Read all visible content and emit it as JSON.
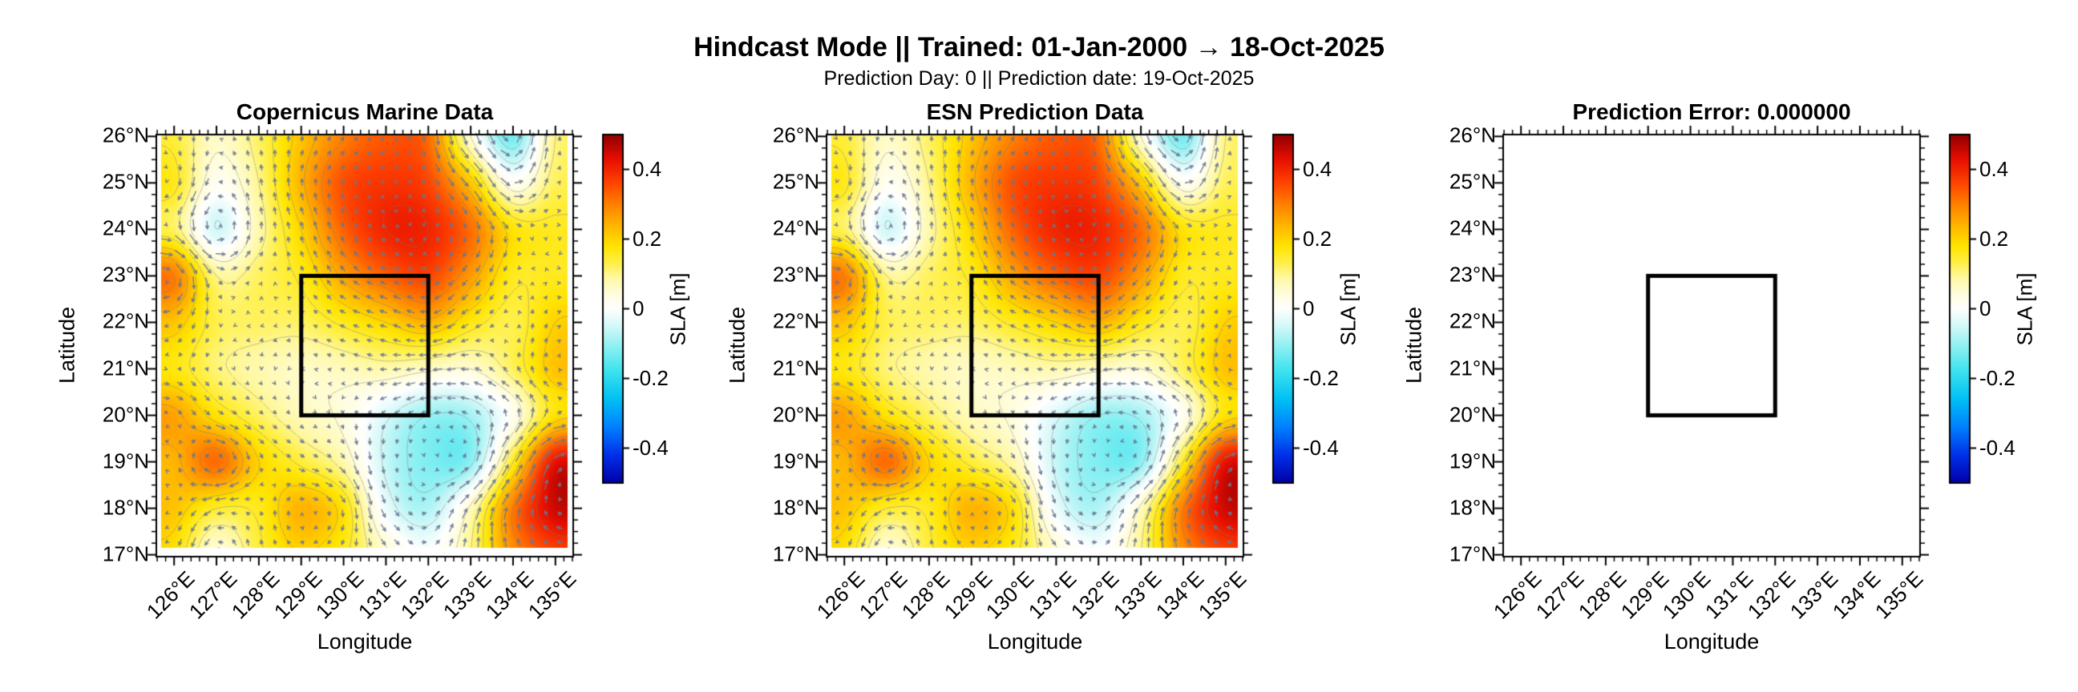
{
  "header": {
    "title": "Hindcast Mode || Trained: 01-Jan-2000 → 18-Oct-2025",
    "subtitle": "Prediction Day: 0 || Prediction date: 19-Oct-2025"
  },
  "panels": [
    {
      "title": "Copernicus Marine Data",
      "has_field": true
    },
    {
      "title": "ESN Prediction Data",
      "has_field": true
    },
    {
      "title": "Prediction Error: 0.000000",
      "has_field": false
    }
  ],
  "axis": {
    "xlabel": "Longitude",
    "ylabel": "Latitude",
    "x_tick_labels": [
      "126°E",
      "127°E",
      "128°E",
      "129°E",
      "130°E",
      "131°E",
      "132°E",
      "133°E",
      "134°E",
      "135°E"
    ],
    "x_tick_values": [
      126,
      127,
      128,
      129,
      130,
      131,
      132,
      133,
      134,
      135
    ],
    "y_tick_labels": [
      "26°N",
      "25°N",
      "24°N",
      "23°N",
      "22°N",
      "21°N",
      "20°N",
      "19°N",
      "18°N",
      "17°N"
    ],
    "y_tick_values": [
      26,
      25,
      24,
      23,
      22,
      21,
      20,
      19,
      18,
      17
    ]
  },
  "colorbar": {
    "label": "SLA [m]",
    "tick_labels": [
      "0.4",
      "0.2",
      "0",
      "-0.2",
      "-0.4"
    ],
    "tick_values": [
      0.4,
      0.2,
      0,
      -0.2,
      -0.4
    ],
    "range": [
      -0.5,
      0.5
    ]
  },
  "chart_data": {
    "type": "heatmap",
    "title": "Hindcast Mode || Trained: 01-Jan-2000 → 18-Oct-2025",
    "subtitle": "Prediction Day: 0 || Prediction date: 19-Oct-2025",
    "panel_titles": [
      "Copernicus Marine Data",
      "ESN Prediction Data",
      "Prediction Error: 0.000000"
    ],
    "xlabel": "Longitude",
    "ylabel": "Latitude",
    "xlim": [
      125.58,
      135.42
    ],
    "ylim": [
      16.96,
      26.04
    ],
    "data_extent": {
      "lon": [
        125.7,
        135.3
      ],
      "lat": [
        17.15,
        26.02
      ]
    },
    "colorbar": {
      "label": "SLA [m]",
      "min": -0.5,
      "max": 0.5,
      "ticks": [
        0.4,
        0.2,
        0,
        -0.2,
        -0.4
      ]
    },
    "study_box": {
      "lon": [
        129,
        132
      ],
      "lat": [
        20,
        23
      ]
    },
    "prediction_error": 0.0,
    "note": "Panels 1 and 2 show identical SLA fields (error = 0). Panel 3 is blank. Values approximate, read from colors.",
    "sla_grid": {
      "lon": [
        126,
        127,
        128,
        129,
        130,
        131,
        132,
        133,
        134,
        135
      ],
      "lat": [
        26,
        25,
        24,
        23,
        22,
        21,
        20,
        19,
        18,
        17
      ],
      "values": [
        [
          0.14,
          0.06,
          0.12,
          0.22,
          0.3,
          0.34,
          0.32,
          0.05,
          -0.13,
          0.1
        ],
        [
          0.16,
          0.02,
          0.1,
          0.24,
          0.35,
          0.38,
          0.36,
          0.22,
          0.02,
          0.12
        ],
        [
          0.12,
          -0.05,
          0.08,
          0.2,
          0.33,
          0.4,
          0.4,
          0.32,
          0.18,
          0.16
        ],
        [
          0.3,
          0.1,
          0.12,
          0.16,
          0.26,
          0.33,
          0.36,
          0.27,
          0.16,
          0.16
        ],
        [
          0.22,
          0.13,
          0.12,
          0.12,
          0.16,
          0.2,
          0.24,
          0.17,
          0.13,
          0.2
        ],
        [
          0.17,
          0.11,
          0.08,
          0.06,
          0.07,
          0.08,
          0.06,
          0.05,
          0.12,
          0.22
        ],
        [
          0.26,
          0.18,
          0.12,
          0.07,
          0.04,
          -0.04,
          -0.1,
          -0.09,
          0.02,
          0.18
        ],
        [
          0.24,
          0.32,
          0.2,
          0.14,
          0.08,
          -0.06,
          -0.12,
          -0.11,
          0.15,
          0.42
        ],
        [
          0.22,
          0.15,
          0.16,
          0.24,
          0.18,
          -0.02,
          -0.08,
          0.06,
          0.3,
          0.45
        ],
        [
          0.18,
          0.04,
          0.14,
          0.2,
          0.16,
          0.06,
          0.0,
          0.1,
          0.28,
          0.36
        ]
      ]
    },
    "colormap_stops": [
      [
        -0.5,
        "#0000a8"
      ],
      [
        -0.42,
        "#0030e8"
      ],
      [
        -0.34,
        "#0080ff"
      ],
      [
        -0.26,
        "#00c0f4"
      ],
      [
        -0.18,
        "#3ce2ee"
      ],
      [
        -0.11,
        "#8cf0f2"
      ],
      [
        -0.05,
        "#d4f8f8"
      ],
      [
        0.0,
        "#ffffff"
      ],
      [
        0.04,
        "#fffde0"
      ],
      [
        0.09,
        "#fff8a0"
      ],
      [
        0.13,
        "#fff04a"
      ],
      [
        0.18,
        "#ffe400"
      ],
      [
        0.24,
        "#ffb400"
      ],
      [
        0.3,
        "#ff8000"
      ],
      [
        0.36,
        "#ff4400"
      ],
      [
        0.43,
        "#e60e00"
      ],
      [
        0.5,
        "#900000"
      ]
    ],
    "quiver": {
      "color": "#6a7690",
      "meaning": "geostrophic current arrows"
    },
    "contours": {
      "style": "dashed gray",
      "interval": 0.05
    }
  }
}
